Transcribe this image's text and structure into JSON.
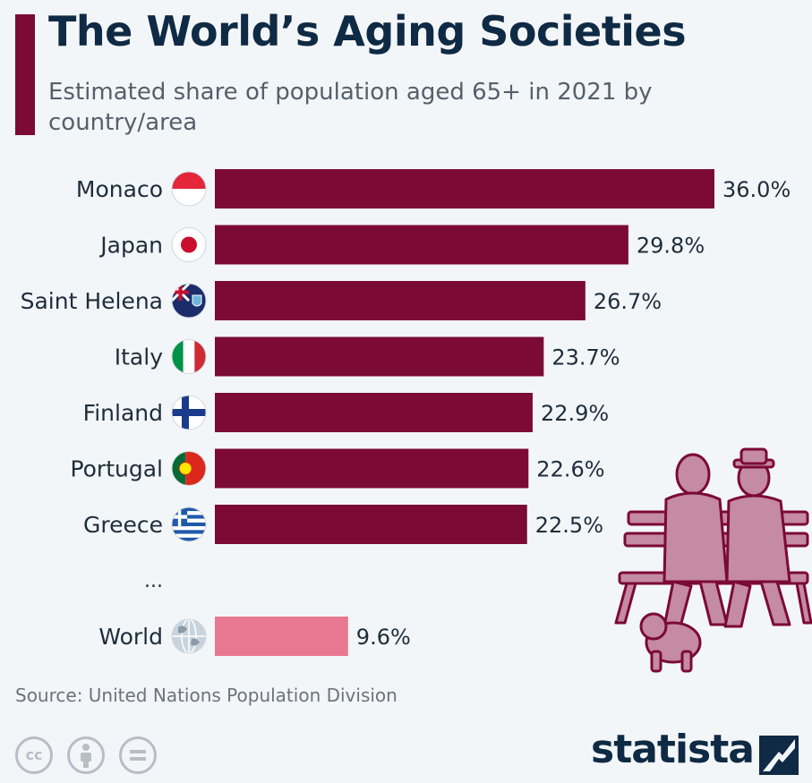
{
  "header": {
    "title": "The World’s Aging Societies",
    "subtitle": "Estimated share of population aged 65+ in 2021 by country/area"
  },
  "colors": {
    "bar": "#7b0a35",
    "world_bar": "#e87890",
    "title": "#0f2a44",
    "text": "#1e2d3b"
  },
  "chart_data": {
    "type": "bar",
    "orientation": "horizontal",
    "title": "The World’s Aging Societies",
    "subtitle": "Estimated share of population aged 65+ in 2021 by country/area",
    "categories": [
      "Monaco",
      "Japan",
      "Saint Helena",
      "Italy",
      "Finland",
      "Portugal",
      "Greece",
      "World"
    ],
    "values": [
      36.0,
      29.8,
      26.7,
      23.7,
      22.9,
      22.6,
      22.5,
      9.6
    ],
    "value_labels": [
      "36.0%",
      "29.8%",
      "26.7%",
      "23.7%",
      "22.9%",
      "22.6%",
      "22.5%",
      "9.6%"
    ],
    "flag_icons": [
      "monaco-flag-icon",
      "japan-flag-icon",
      "saint-helena-flag-icon",
      "italy-flag-icon",
      "finland-flag-icon",
      "portugal-flag-icon",
      "greece-flag-icon",
      "globe-icon"
    ],
    "gap_label": "...",
    "unit": "%",
    "grid": false,
    "legend": false
  },
  "footer": {
    "source": "Source: United Nations Population Division",
    "brand": "statista",
    "license_icons": [
      "cc-icon",
      "by-icon",
      "nd-icon"
    ]
  }
}
